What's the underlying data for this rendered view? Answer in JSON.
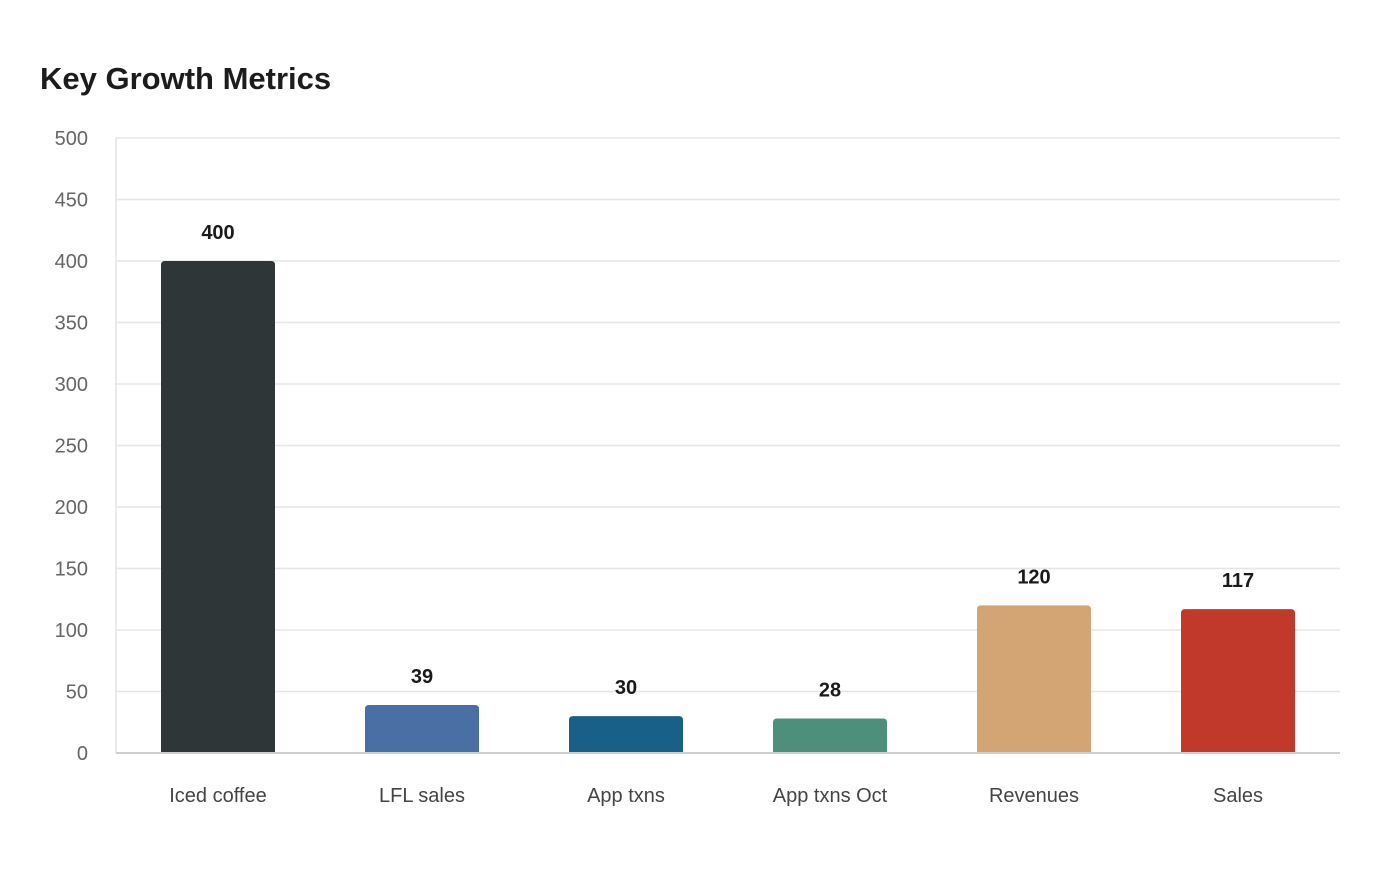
{
  "chart_data": {
    "type": "bar",
    "title": "Key Growth Metrics",
    "xlabel": "",
    "ylabel": "",
    "categories": [
      "Iced coffee",
      "LFL sales",
      "App txns",
      "App txns Oct",
      "Revenues",
      "Sales"
    ],
    "values": [
      400,
      39,
      30,
      28,
      120,
      117
    ],
    "data_labels": [
      "400",
      "39",
      "30",
      "28",
      "120",
      "117"
    ],
    "colors": [
      "#2e3638",
      "#4a6fa5",
      "#186088",
      "#4e8f7c",
      "#d3a574",
      "#c0392b"
    ],
    "ylim": [
      0,
      500
    ],
    "yticks": [
      0,
      50,
      100,
      150,
      200,
      250,
      300,
      350,
      400,
      450,
      500
    ],
    "grid": true,
    "legend": "none"
  }
}
